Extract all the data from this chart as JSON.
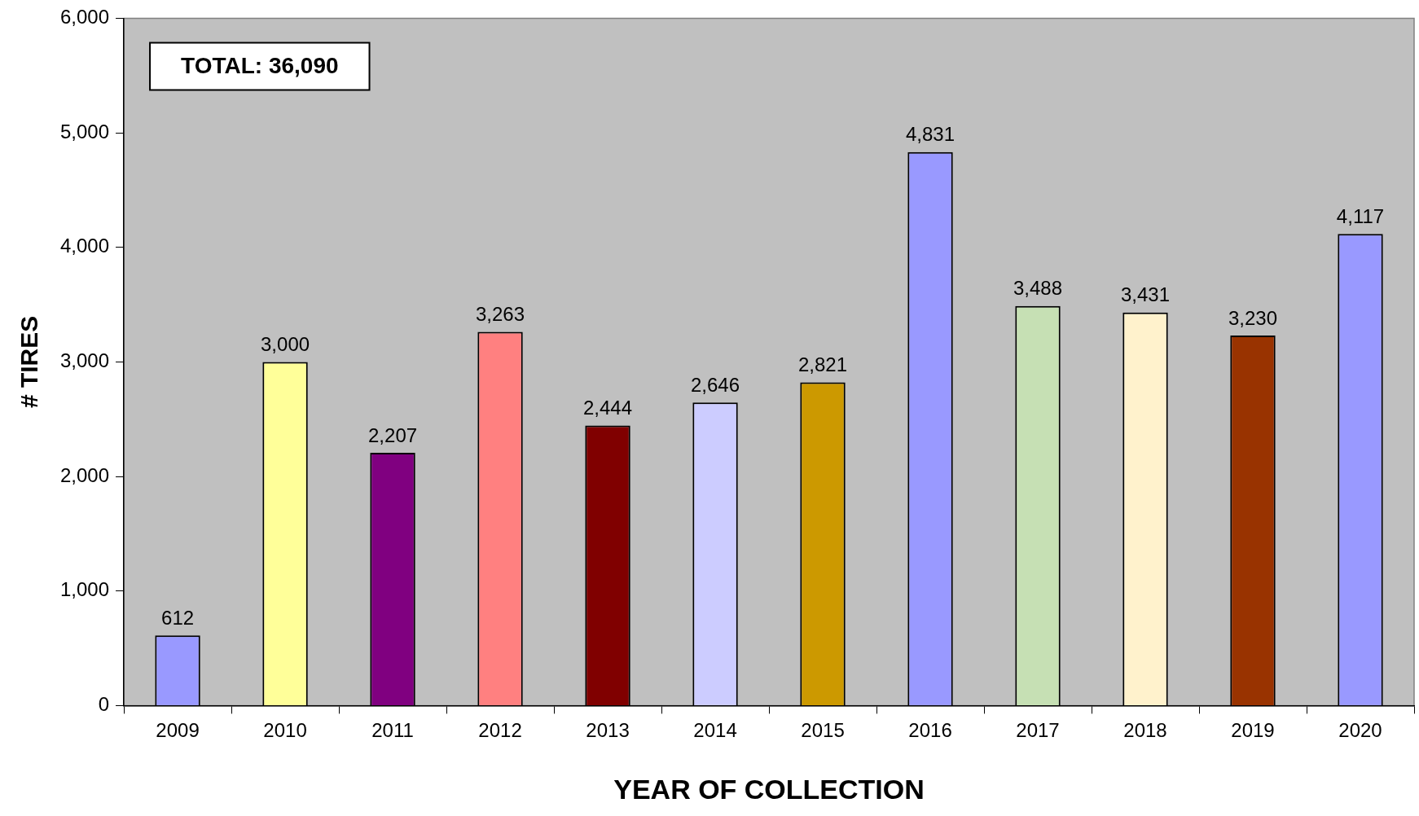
{
  "chart_data": {
    "type": "bar",
    "xlabel": "YEAR OF COLLECTION",
    "ylabel": "# TIRES",
    "categories": [
      "2009",
      "2010",
      "2011",
      "2012",
      "2013",
      "2014",
      "2015",
      "2016",
      "2017",
      "2018",
      "2019",
      "2020"
    ],
    "values": [
      612,
      3000,
      2207,
      3263,
      2444,
      2646,
      2821,
      4831,
      3488,
      3431,
      3230,
      4117
    ],
    "colors": [
      "#9999ff",
      "#ffff99",
      "#800080",
      "#ff8080",
      "#800000",
      "#ccccff",
      "#cc9900",
      "#9999ff",
      "#c6e0b4",
      "#fff2cc",
      "#993300",
      "#9999ff"
    ],
    "ylim": [
      0,
      6000
    ],
    "yticks": [
      {
        "value": 0,
        "label": "0"
      },
      {
        "value": 1000,
        "label": "1,000"
      },
      {
        "value": 2000,
        "label": "2,000"
      },
      {
        "value": 3000,
        "label": "3,000"
      },
      {
        "value": 4000,
        "label": "4,000"
      },
      {
        "value": 5000,
        "label": "5,000"
      },
      {
        "value": 6000,
        "label": "6,000"
      }
    ],
    "value_labels": [
      "612",
      "3,000",
      "2,207",
      "3,263",
      "2,444",
      "2,646",
      "2,821",
      "4,831",
      "3,488",
      "3,431",
      "3,230",
      "4,117"
    ],
    "annotations": [
      "TOTAL: 36,090"
    ],
    "grid": false,
    "legend": false
  }
}
